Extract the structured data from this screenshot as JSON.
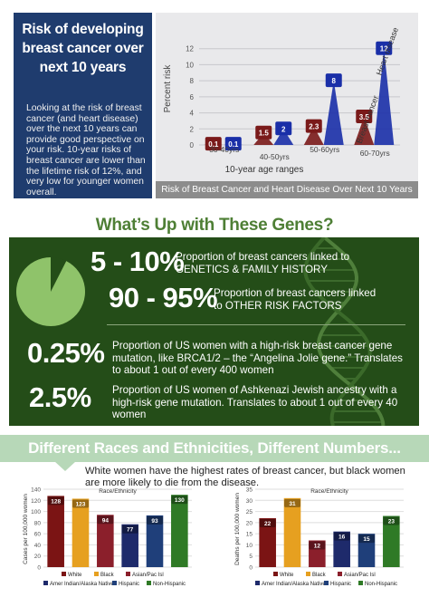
{
  "risk": {
    "title": "Risk of developing breast cancer over next 10 years",
    "body": "Looking at the risk of breast cancer (and heart disease) over the next 10 years can provide good perspective on your risk.  10-year risks of breast cancer are lower than the lifetime risk of 12%, and very low for younger women overall.",
    "chart_caption": "Risk of Breast Cancer and Heart Disease Over Next 10 Years"
  },
  "genes": {
    "title": "What’s Up with These Genes?",
    "items": [
      {
        "pct": "5 - 10%",
        "desc": "Proportion of breast cancers linked to GENETICS & FAMILY HISTORY"
      },
      {
        "pct": "90 - 95%",
        "desc": "Proportion of breast cancers linked to OTHER RISK FACTORS"
      },
      {
        "pct": "0.25%",
        "desc": "Proportion of US women with a high-risk breast cancer gene mutation, like BRCA1/2 – the “Angelina Jolie gene.”  Translates to about 1 out of every 400 women"
      },
      {
        "pct": "2.5%",
        "desc": "Proportion of US women of Ashkenazi Jewish ancestry with a high-risk gene mutation.  Translates to about 1 out of every 40 women"
      }
    ]
  },
  "races": {
    "title": "Different Races and Ethnicities, Different Numbers...",
    "note": "White women have the highest rates of breast cancer, but black women are more likely to die from the disease."
  },
  "chart_data": [
    {
      "type": "line",
      "title": "Risk of Breast Cancer and Heart Disease Over Next 10 Years",
      "xlabel": "10-year age ranges",
      "ylabel": "Percent risk",
      "categories": [
        "30-40yrs",
        "40-50yrs",
        "50-60yrs",
        "60-70yrs"
      ],
      "ylim": [
        0,
        14
      ],
      "yticks": [
        0,
        2,
        4,
        6,
        8,
        10,
        12
      ],
      "grid": true,
      "series": [
        {
          "name": "Breast cancer",
          "values": [
            0.1,
            1.5,
            2.3,
            3.5
          ],
          "color": "#7a1a1a"
        },
        {
          "name": "Heart disease",
          "values": [
            0.1,
            2,
            8,
            12
          ],
          "color": "#1a2fa8"
        }
      ]
    },
    {
      "type": "pie",
      "values": [
        7.5,
        92.5
      ],
      "labels": [
        "5 - 10%",
        "90 - 95%"
      ],
      "colors": [
        "#244d18",
        "#8fc36a"
      ]
    },
    {
      "type": "bar",
      "xlabel": "Race/Ethnicity",
      "ylabel": "Cases per 100,000 women",
      "categories": [
        "White",
        "Black",
        "Asian/Pac Isl",
        "Amer Indian/Alaska Native",
        "Hispanic",
        "Non-Hispanic"
      ],
      "values": [
        128,
        123,
        94,
        77,
        93,
        130
      ],
      "colors": [
        "#7b1414",
        "#e6a020",
        "#8b1f2b",
        "#1e2a6b",
        "#1f3f7a",
        "#2f7a26"
      ],
      "ylim": [
        0,
        140
      ],
      "yticks": [
        0,
        20,
        40,
        60,
        80,
        100,
        120,
        140
      ]
    },
    {
      "type": "bar",
      "xlabel": "Race/Ethnicity",
      "ylabel": "Deaths per 100,000 women",
      "categories": [
        "White",
        "Black",
        "Asian/Pac Isl",
        "Amer Indian/Alaska Native",
        "Hispanic",
        "Non-Hispanic"
      ],
      "values": [
        22,
        31,
        12,
        16,
        15,
        23
      ],
      "colors": [
        "#7b1414",
        "#e6a020",
        "#8b1f2b",
        "#1e2a6b",
        "#1f3f7a",
        "#2f7a26"
      ],
      "ylim": [
        0,
        35
      ],
      "yticks": [
        0,
        5,
        10,
        15,
        20,
        25,
        30,
        35
      ]
    }
  ]
}
